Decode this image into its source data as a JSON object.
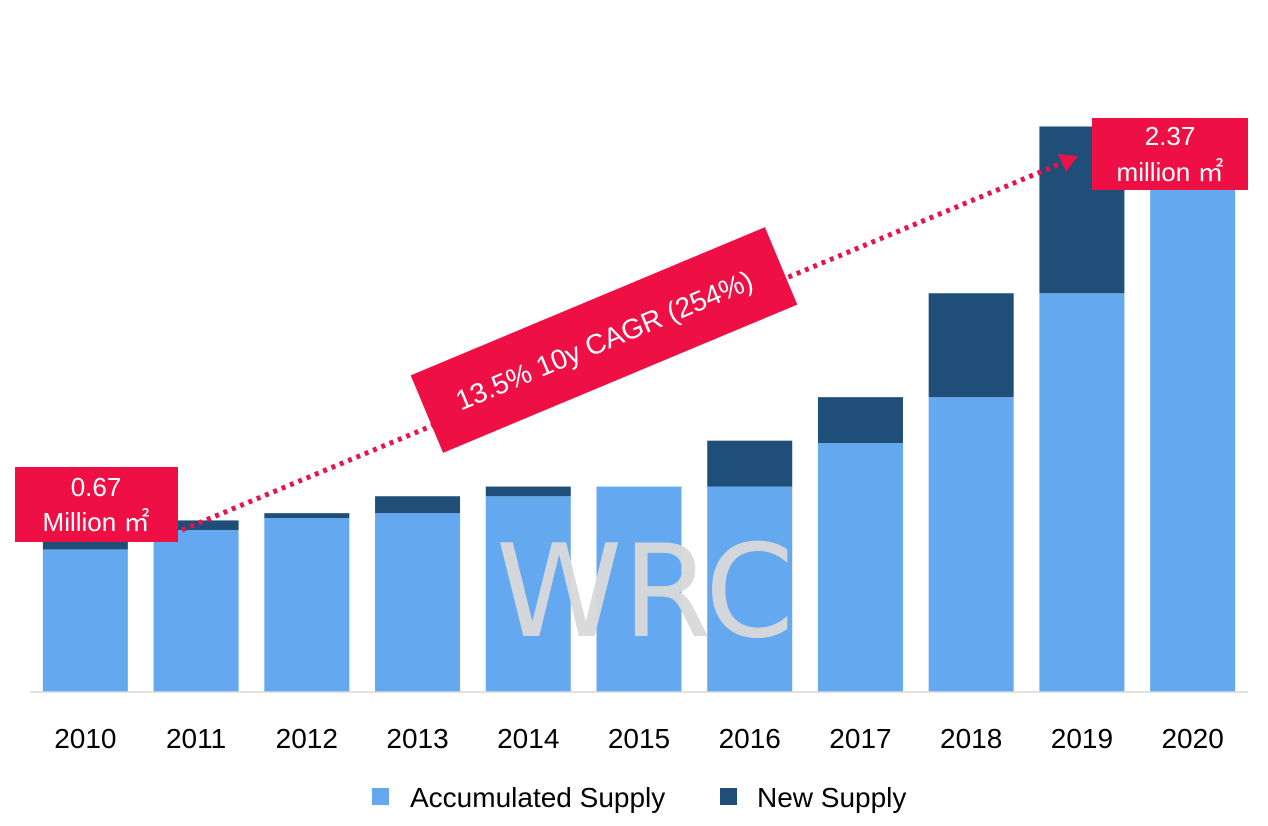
{
  "chart_data": {
    "type": "bar",
    "stacked": true,
    "categories": [
      "2010",
      "2011",
      "2012",
      "2013",
      "2014",
      "2015",
      "2016",
      "2017",
      "2018",
      "2019",
      "2020"
    ],
    "series": [
      {
        "name": "Accumulated Supply",
        "color": "#64a8f0",
        "values": [
          0.59,
          0.67,
          0.72,
          0.74,
          0.81,
          0.85,
          0.85,
          1.03,
          1.22,
          1.65,
          2.33
        ]
      },
      {
        "name": "New Supply",
        "color": "#1f4e79",
        "values": [
          0.08,
          0.04,
          0.02,
          0.07,
          0.04,
          0.0,
          0.19,
          0.19,
          0.43,
          0.69,
          0.04
        ]
      }
    ],
    "ylim": [
      0,
      2.4
    ],
    "grid": false,
    "legend_position": "bottom",
    "annotations": {
      "start_callout": [
        "0.67",
        "Million ㎡"
      ],
      "end_callout": [
        "2.37",
        "million ㎡"
      ],
      "cagr_label": "13.5% 10y CAGR (254%)",
      "colors": {
        "callout": "#ee0f45",
        "arrow": "#e8134a"
      }
    },
    "watermark": "WRC"
  }
}
